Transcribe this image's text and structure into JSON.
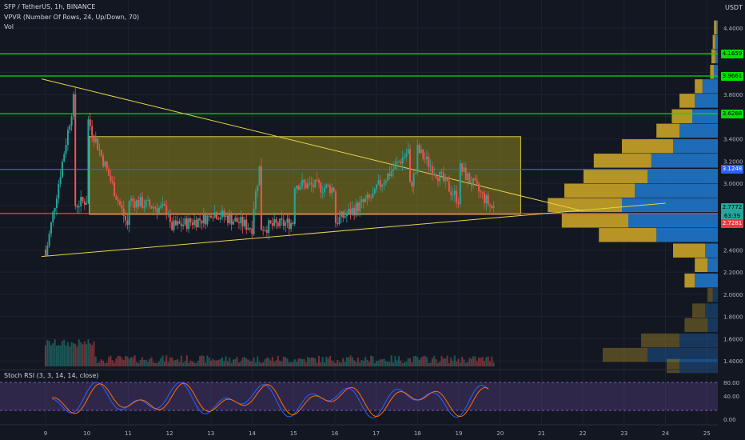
{
  "header": {
    "symbol_line": "SFP / TetherUS, 1h, BINANCE",
    "indicator_vpvr": "VPVR (Number Of Rows, 24, Up/Down, 70)",
    "indicator_vol": "Vol",
    "currency": "USDT"
  },
  "price_axis": {
    "labels": [
      "4.4000",
      "4.1659",
      "3.9661",
      "3.8000",
      "3.6268",
      "3.4000",
      "3.2000",
      "3.1248",
      "3.0000",
      "2.7772",
      "63:39",
      "2.7281",
      "2.4000",
      "2.2000",
      "2.0000",
      "1.8000",
      "1.6000",
      "1.4000"
    ],
    "tags": [
      {
        "text": "4.1659",
        "color": "#00e000"
      },
      {
        "text": "3.9661",
        "color": "#00e000"
      },
      {
        "text": "3.6268",
        "color": "#00e000"
      },
      {
        "text": "3.1248",
        "color": "#2962ff"
      },
      {
        "text": "2.7772",
        "color": "#26a69a"
      },
      {
        "text": "63:39",
        "color": "#26a69a"
      },
      {
        "text": "2.7281",
        "color": "#f23645"
      }
    ]
  },
  "time_axis": {
    "labels": [
      "9",
      "10",
      "11",
      "12",
      "13",
      "14",
      "15",
      "16",
      "17",
      "18",
      "19",
      "20",
      "21",
      "22",
      "23",
      "24",
      "25"
    ]
  },
  "stoch_rsi": {
    "title": "Stoch RSI (3, 3, 14, 14, close)",
    "levels": [
      "80.00",
      "40.00",
      "0.00"
    ]
  },
  "colors": {
    "background": "#131722",
    "up": "#26a69a",
    "down": "#ef5350",
    "support_lines": "#00e000",
    "pivot_line": "#2962ff",
    "red_line": "#f23645",
    "trend_lines": "#e5d44a",
    "range_box": "#a89d1a",
    "vpvr_up": "#2076c8",
    "vpvr_down": "#c9a227"
  },
  "chart_data": {
    "type": "candlestick",
    "symbol": "SFP/USDT",
    "interval": "1h",
    "ylim": [
      1.35,
      4.55
    ],
    "horizontal_levels": [
      4.1659,
      3.9661,
      3.6268,
      3.1248,
      2.7281
    ],
    "last_price": 2.7772,
    "range_box": {
      "from": "10",
      "to": "21",
      "low": 2.72,
      "high": 3.42
    },
    "trend_lines": [
      {
        "from_x": "9",
        "from_y": 3.94,
        "to_x": "22",
        "to_y": 2.75
      },
      {
        "from_x": "9",
        "from_y": 2.34,
        "to_x": "24",
        "to_y": 2.82
      }
    ],
    "vpvr_rows": [
      {
        "price": 4.4,
        "up": 0.02,
        "down": 0.01
      },
      {
        "price": 4.27,
        "up": 0.02,
        "down": 0.02
      },
      {
        "price": 4.14,
        "up": 0.03,
        "down": 0.02
      },
      {
        "price": 4.0,
        "up": 0.03,
        "down": 0.03
      },
      {
        "price": 3.87,
        "up": 0.06,
        "down": 0.12
      },
      {
        "price": 3.74,
        "up": 0.12,
        "down": 0.18
      },
      {
        "price": 3.6,
        "up": 0.16,
        "down": 0.2
      },
      {
        "price": 3.47,
        "up": 0.18,
        "down": 0.3
      },
      {
        "price": 3.33,
        "up": 0.4,
        "down": 0.35
      },
      {
        "price": 3.2,
        "up": 0.45,
        "down": 0.52
      },
      {
        "price": 3.06,
        "up": 0.5,
        "down": 0.55
      },
      {
        "price": 2.93,
        "up": 0.55,
        "down": 0.65
      },
      {
        "price": 2.8,
        "up": 0.58,
        "down": 0.75
      },
      {
        "price": 2.66,
        "up": 0.52,
        "down": 0.7
      },
      {
        "price": 2.53,
        "up": 0.45,
        "down": 0.48
      },
      {
        "price": 2.39,
        "up": 0.25,
        "down": 0.1
      },
      {
        "price": 2.26,
        "up": 0.1,
        "down": 0.08
      },
      {
        "price": 2.12,
        "up": 0.08,
        "down": 0.18
      },
      {
        "price": 1.99,
        "up": 0.04,
        "down": 0.04
      },
      {
        "price": 1.85,
        "up": 0.1,
        "down": 0.1
      },
      {
        "price": 1.72,
        "up": 0.18,
        "down": 0.08
      },
      {
        "price": 1.58,
        "up": 0.3,
        "down": 0.3
      },
      {
        "price": 1.45,
        "up": 0.35,
        "down": 0.55
      },
      {
        "price": 1.35,
        "up": 0.1,
        "down": 0.3
      }
    ],
    "candles_hourly_summary": [
      {
        "day": "9",
        "open": 2.35,
        "close": 2.8
      },
      {
        "day": "9.7",
        "open": 2.8,
        "close": 3.8
      },
      {
        "day": "10",
        "open": 3.6,
        "close": 2.85
      },
      {
        "day": "11",
        "open": 2.85,
        "close": 2.6
      },
      {
        "day": "12",
        "open": 2.6,
        "close": 2.75
      },
      {
        "day": "13",
        "open": 2.75,
        "close": 2.7
      },
      {
        "day": "14",
        "open": 2.7,
        "close": 2.6
      },
      {
        "day": "14.2",
        "open": 2.6,
        "close": 3.2
      },
      {
        "day": "15",
        "open": 3.0,
        "close": 2.65
      },
      {
        "day": "16",
        "open": 2.65,
        "close": 2.95
      },
      {
        "day": "17",
        "open": 2.95,
        "close": 2.9
      },
      {
        "day": "17.8",
        "open": 2.95,
        "close": 3.3
      },
      {
        "day": "18",
        "open": 3.3,
        "close": 3.15
      },
      {
        "day": "19",
        "open": 3.15,
        "close": 2.85
      },
      {
        "day": "19.8",
        "open": 2.85,
        "close": 2.78
      }
    ]
  }
}
